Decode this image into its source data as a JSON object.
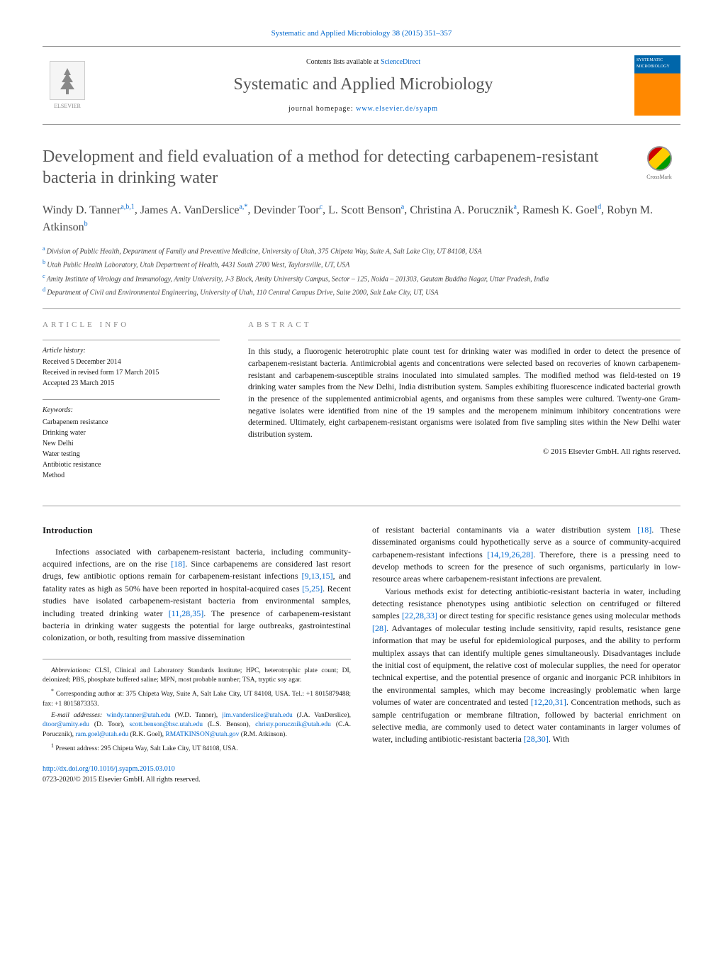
{
  "header": {
    "citation_link_text": "Systematic and Applied Microbiology 38 (2015) 351–357",
    "contents_pre": "Contents lists available at ",
    "contents_link": "ScienceDirect",
    "journal_name": "Systematic and Applied Microbiology",
    "homepage_pre": "journal homepage: ",
    "homepage_link": "www.elsevier.de/syapm",
    "elsevier_label": "ELSEVIER",
    "cover_label": "SYSTEMATIC MICROBIOLOGY"
  },
  "article": {
    "title": "Development and field evaluation of a method for detecting carbapenem-resistant bacteria in drinking water",
    "crossmark_label": "CrossMark",
    "authors_html": "Windy D. Tanner",
    "authors": [
      {
        "name": "Windy D. Tanner",
        "sup": "a,b,1"
      },
      {
        "name": "James A. VanDerslice",
        "sup": "a,*"
      },
      {
        "name": "Devinder Toor",
        "sup": "c"
      },
      {
        "name": "L. Scott Benson",
        "sup": "a"
      },
      {
        "name": "Christina A. Porucznik",
        "sup": "a"
      },
      {
        "name": "Ramesh K. Goel",
        "sup": "d"
      },
      {
        "name": "Robyn M. Atkinson",
        "sup": "b"
      }
    ],
    "affiliations": [
      {
        "sup": "a",
        "text": "Division of Public Health, Department of Family and Preventive Medicine, University of Utah, 375 Chipeta Way, Suite A, Salt Lake City, UT 84108, USA"
      },
      {
        "sup": "b",
        "text": "Utah Public Health Laboratory, Utah Department of Health, 4431 South 2700 West, Taylorsville, UT, USA"
      },
      {
        "sup": "c",
        "text": "Amity Institute of Virology and Immunology, Amity University, J-3 Block, Amity University Campus, Sector – 125, Noida – 201303, Gautam Buddha Nagar, Uttar Pradesh, India"
      },
      {
        "sup": "d",
        "text": "Department of Civil and Environmental Engineering, University of Utah, 110 Central Campus Drive, Suite 2000, Salt Lake City, UT, USA"
      }
    ]
  },
  "info": {
    "heading": "article info",
    "history_label": "Article history:",
    "history": [
      "Received 5 December 2014",
      "Received in revised form 17 March 2015",
      "Accepted 23 March 2015"
    ],
    "keywords_label": "Keywords:",
    "keywords": [
      "Carbapenem resistance",
      "Drinking water",
      "New Delhi",
      "Water testing",
      "Antibiotic resistance",
      "Method"
    ]
  },
  "abstract": {
    "heading": "abstract",
    "text": "In this study, a fluorogenic heterotrophic plate count test for drinking water was modified in order to detect the presence of carbapenem-resistant bacteria. Antimicrobial agents and concentrations were selected based on recoveries of known carbapenem-resistant and carbapenem-susceptible strains inoculated into simulated samples. The modified method was field-tested on 19 drinking water samples from the New Delhi, India distribution system. Samples exhibiting fluorescence indicated bacterial growth in the presence of the supplemented antimicrobial agents, and organisms from these samples were cultured. Twenty-one Gram-negative isolates were identified from nine of the 19 samples and the meropenem minimum inhibitory concentrations were determined. Ultimately, eight carbapenem-resistant organisms were isolated from five sampling sites within the New Delhi water distribution system.",
    "copyright": "© 2015 Elsevier GmbH. All rights reserved."
  },
  "body": {
    "intro_heading": "Introduction",
    "col1_p1_pre": "Infections associated with carbapenem-resistant bacteria, including community-acquired infections, are on the rise ",
    "col1_p1_ref1": "[18]",
    "col1_p1_mid1": ". Since carbapenems are considered last resort drugs, few antibiotic options remain for carbapenem-resistant infections ",
    "col1_p1_ref2": "[9,13,15]",
    "col1_p1_mid2": ", and fatality rates as high as 50% have been reported in hospital-acquired cases ",
    "col1_p1_ref3": "[5,25]",
    "col1_p1_mid3": ". Recent studies have isolated carbapenem-resistant bacteria from environmental samples, including treated drinking water ",
    "col1_p1_ref4": "[11,28,35]",
    "col1_p1_post": ". The presence of carbapenem-resistant bacteria in drinking water suggests the potential for large outbreaks, gastrointestinal colonization, or both, resulting from massive dissemination",
    "col2_p1_pre": "of resistant bacterial contaminants via a water distribution system ",
    "col2_p1_ref1": "[18]",
    "col2_p1_mid1": ". These disseminated organisms could hypothetically serve as a source of community-acquired carbapenem-resistant infections ",
    "col2_p1_ref2": "[14,19,26,28]",
    "col2_p1_post": ". Therefore, there is a pressing need to develop methods to screen for the presence of such organisms, particularly in low-resource areas where carbapenem-resistant infections are prevalent.",
    "col2_p2_pre": "Various methods exist for detecting antibiotic-resistant bacteria in water, including detecting resistance phenotypes using antibiotic selection on centrifuged or filtered samples ",
    "col2_p2_ref1": "[22,28,33]",
    "col2_p2_mid1": " or direct testing for specific resistance genes using molecular methods ",
    "col2_p2_ref2": "[28]",
    "col2_p2_mid2": ". Advantages of molecular testing include sensitivity, rapid results, resistance gene information that may be useful for epidemiological purposes, and the ability to perform multiplex assays that can identify multiple genes simultaneously. Disadvantages include the initial cost of equipment, the relative cost of molecular supplies, the need for operator technical expertise, and the potential presence of organic and inorganic PCR inhibitors in the environmental samples, which may become increasingly problematic when large volumes of water are concentrated and tested ",
    "col2_p2_ref3": "[12,20,31]",
    "col2_p2_mid3": ". Concentration methods, such as sample centrifugation or membrane filtration, followed by bacterial enrichment on selective media, are commonly used to detect water contaminants in larger volumes of water, including antibiotic-resistant bacteria ",
    "col2_p2_ref4": "[28,30]",
    "col2_p2_post": ". With"
  },
  "footnotes": {
    "abbrev_label": "Abbreviations:",
    "abbrev_text": " CLSI, Clinical and Laboratory Standards Institute; HPC, heterotrophic plate count; DI, deionized; PBS, phosphate buffered saline; MPN, most probable number; TSA, tryptic soy agar.",
    "corresp_marker": "*",
    "corresp_text": " Corresponding author at: 375 Chipeta Way, Suite A, Salt Lake City, UT 84108, USA. Tel.: +1 8015879488; fax: +1 8015873353.",
    "email_label": "E-mail addresses:",
    "emails": [
      {
        "addr": "windy.tanner@utah.edu",
        "who": " (W.D. Tanner),"
      },
      {
        "addr": "jim.vanderslice@utah.edu",
        "who": " (J.A. VanDerslice), "
      },
      {
        "addr": "dtoor@amity.edu",
        "who": " (D. Toor),"
      },
      {
        "addr": "scott.benson@hsc.utah.edu",
        "who": " (L.S. Benson), "
      },
      {
        "addr": "christy.porucznik@utah.edu",
        "who": ""
      },
      {
        "addr": "",
        "who": "(C.A. Porucznik), "
      },
      {
        "addr": "ram.goel@utah.edu",
        "who": " (R.K. Goel), "
      },
      {
        "addr": "RMATKINSON@utah.gov",
        "who": ""
      },
      {
        "addr": "",
        "who": "(R.M. Atkinson)."
      }
    ],
    "present_marker": "1",
    "present_text": " Present address: 295 Chipeta Way, Salt Lake City, UT 84108, USA."
  },
  "doi": {
    "link": "http://dx.doi.org/10.1016/j.syapm.2015.03.010",
    "issn_line": "0723-2020/© 2015 Elsevier GmbH. All rights reserved."
  },
  "colors": {
    "link": "#0066cc",
    "text": "#1a1a1a",
    "muted": "#5a5a5a",
    "border": "#999999"
  }
}
